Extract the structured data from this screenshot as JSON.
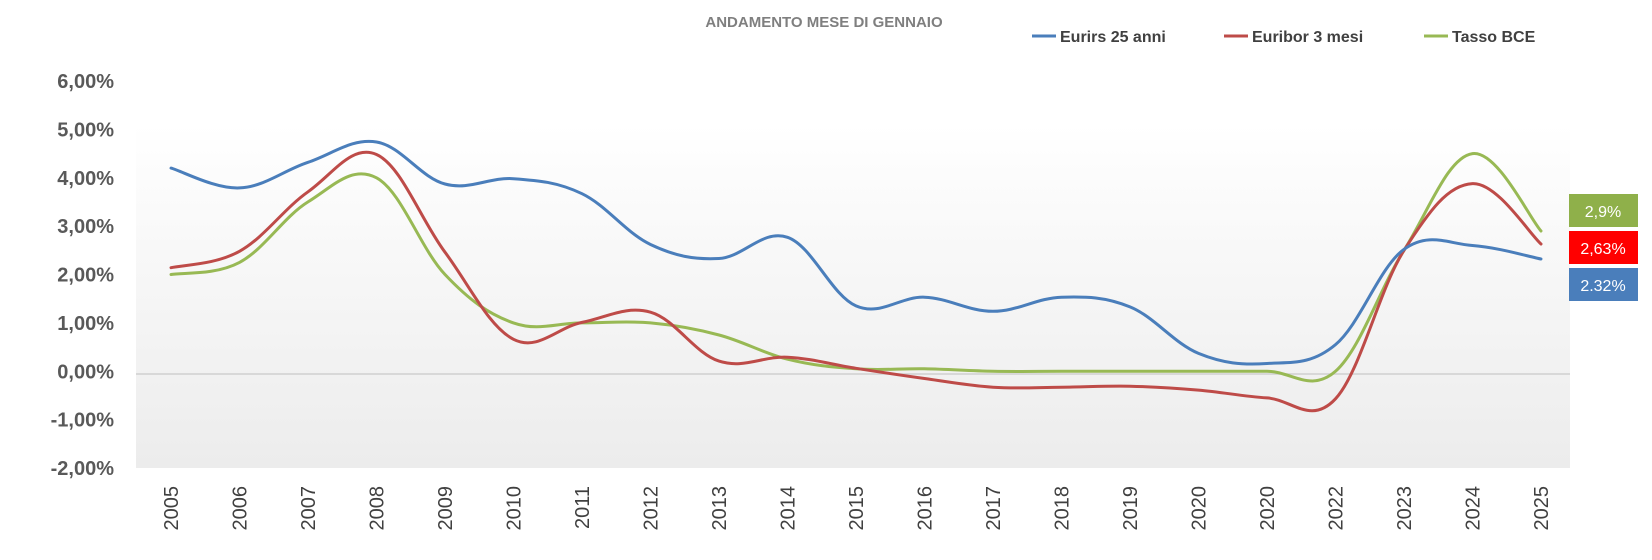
{
  "colors": {
    "eurirs": "#4a7ebb",
    "euribor": "#be4b48",
    "bce": "#98b954",
    "badge_bce": "#8fb04a",
    "badge_euribor": "#ff0000",
    "badge_eurirs": "#4a7ebb"
  },
  "chart_data": {
    "type": "line",
    "title": "ANDAMENTO  MESE DI GENNAIO",
    "xlabel": "",
    "ylabel": "",
    "categories": [
      "2005",
      "2006",
      "2007",
      "2008",
      "2009",
      "2010",
      "2011",
      "2012",
      "2013",
      "2014",
      "2015",
      "2016",
      "2017",
      "2018",
      "2019",
      "2020",
      "2020",
      "2022",
      "2023",
      "2024",
      "2025"
    ],
    "y_tick_labels": [
      "6,00%",
      "5,00%",
      "4,00%",
      "3,00%",
      "2,00%",
      "1,00%",
      "0,00%",
      "-1,00%",
      "-2,00%"
    ],
    "ylim": [
      -2,
      6
    ],
    "grid": false,
    "zero_line": true,
    "legend_position": "top-right",
    "series": [
      {
        "name": "Eurirs 25 anni",
        "color_key": "eurirs",
        "values": [
          4.2,
          3.79,
          4.32,
          4.74,
          3.87,
          3.98,
          3.67,
          2.62,
          2.33,
          2.77,
          1.35,
          1.53,
          1.24,
          1.53,
          1.33,
          0.37,
          0.16,
          0.55,
          2.52,
          2.6,
          2.32
        ]
      },
      {
        "name": "Euribor 3 mesi",
        "color_key": "euribor",
        "values": [
          2.14,
          2.48,
          3.71,
          4.48,
          2.46,
          0.66,
          1.01,
          1.22,
          0.21,
          0.29,
          0.06,
          -0.15,
          -0.33,
          -0.33,
          -0.31,
          -0.39,
          -0.55,
          -0.57,
          2.5,
          3.88,
          2.63
        ]
      },
      {
        "name": "Tasso BCE",
        "color_key": "bce",
        "values": [
          2.0,
          2.25,
          3.5,
          4.0,
          2.0,
          1.0,
          1.0,
          1.0,
          0.75,
          0.25,
          0.05,
          0.05,
          0.0,
          0.0,
          0.0,
          0.0,
          0.0,
          0.0,
          2.5,
          4.5,
          2.9
        ]
      }
    ]
  },
  "badges": [
    {
      "label": "2,9%",
      "color_key": "badge_bce"
    },
    {
      "label": "2,63%",
      "color_key": "badge_euribor"
    },
    {
      "label": "2.32%",
      "color_key": "badge_eurirs"
    }
  ]
}
